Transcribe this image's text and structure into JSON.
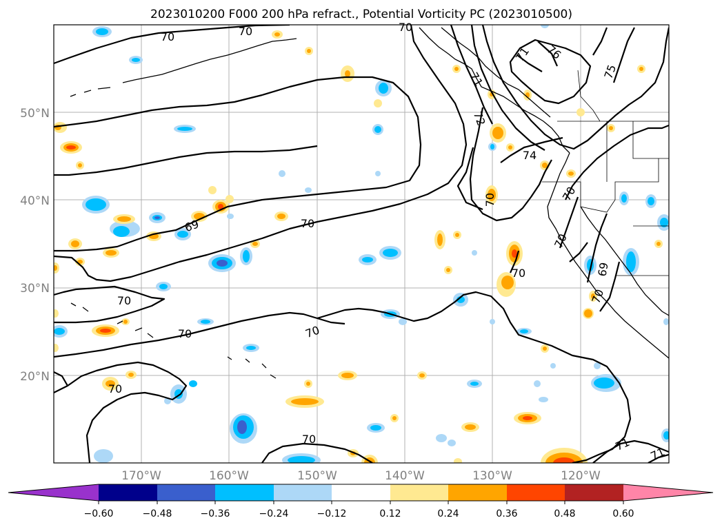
{
  "title": "2023010200 F000 200 hPa refract., Potential Vorticity PC (2023010500)",
  "lat_labels": [
    "50°N",
    "40°N",
    "30°N",
    "20°N"
  ],
  "lon_labels": [
    "170°W",
    "160°W",
    "150°W",
    "140°W",
    "130°W",
    "120°W"
  ],
  "colorbar": {
    "ticks": [
      "−0.60",
      "−0.48",
      "−0.36",
      "−0.24",
      "−0.12",
      "0.12",
      "0.24",
      "0.36",
      "0.48",
      "0.60"
    ],
    "colors": {
      "under": "#9932cc",
      "bins": [
        "#00008b",
        "#3a5fcd",
        "#00bfff",
        "#add8f7",
        "#ffffff",
        "#ffe991",
        "#ffa500",
        "#ff4500",
        "#b22222"
      ],
      "over": "#ff85a8"
    }
  },
  "contour_labels": [
    "70",
    "70",
    "70",
    "70",
    "69",
    "70",
    "70",
    "70",
    "70",
    "70",
    "70",
    "72",
    "74",
    "71",
    "71",
    "76",
    "75",
    "70",
    "70",
    "69",
    "70",
    "71",
    "71",
    "70"
  ],
  "map": {
    "domain": "North-East Pacific, 180°W–110°W, 10°N–60°N",
    "contour_field": "refractivity",
    "shaded_field": "potential vorticity PC"
  }
}
